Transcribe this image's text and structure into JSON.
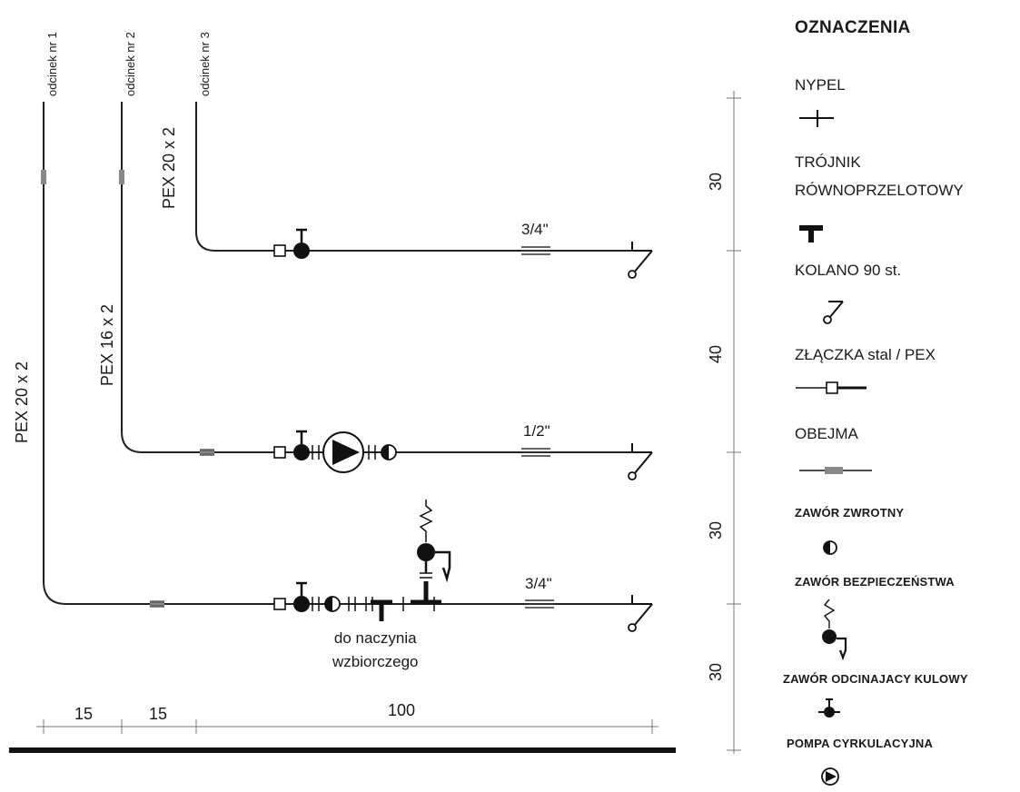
{
  "segments": [
    {
      "name": "odcinek nr 1",
      "pipe": "PEX 20 x 2",
      "size": "3/4\""
    },
    {
      "name": "odcinek nr 2",
      "pipe": "PEX 16 x 2",
      "size": "1/2\""
    },
    {
      "name": "odcinek nr 3",
      "pipe": "PEX 20 x 2",
      "size": "3/4\""
    }
  ],
  "expansion_note": {
    "line1": "do naczynia",
    "line2": "wzbiorczego"
  },
  "dimensions_bottom": [
    "15",
    "15",
    "100"
  ],
  "dimensions_right": [
    "30",
    "40",
    "30",
    "30"
  ],
  "legend": {
    "title": "OZNACZENIA",
    "items": [
      {
        "label": "NYPEL",
        "icon": "nipple-icon"
      },
      {
        "label": "TRÓJNIK",
        "label2": "RÓWNOPRZELOTOWY",
        "icon": "tee-icon"
      },
      {
        "label": "KOLANO 90 st.",
        "icon": "elbow-90-icon"
      },
      {
        "label": "ZŁĄCZKA stal / PEX",
        "icon": "steel-pex-coupling-icon"
      },
      {
        "label": "OBEJMA",
        "icon": "clamp-icon"
      },
      {
        "label": "ZAWÓR ZWROTNY",
        "icon": "check-valve-icon"
      },
      {
        "label": "ZAWÓR BEZPIECZEŃSTWA",
        "icon": "safety-valve-icon"
      },
      {
        "label": "ZAWÓR ODCINAJACY KULOWY",
        "icon": "ball-valve-icon"
      },
      {
        "label": "POMPA CYRKULACYJNA",
        "icon": "circulation-pump-icon"
      }
    ]
  }
}
